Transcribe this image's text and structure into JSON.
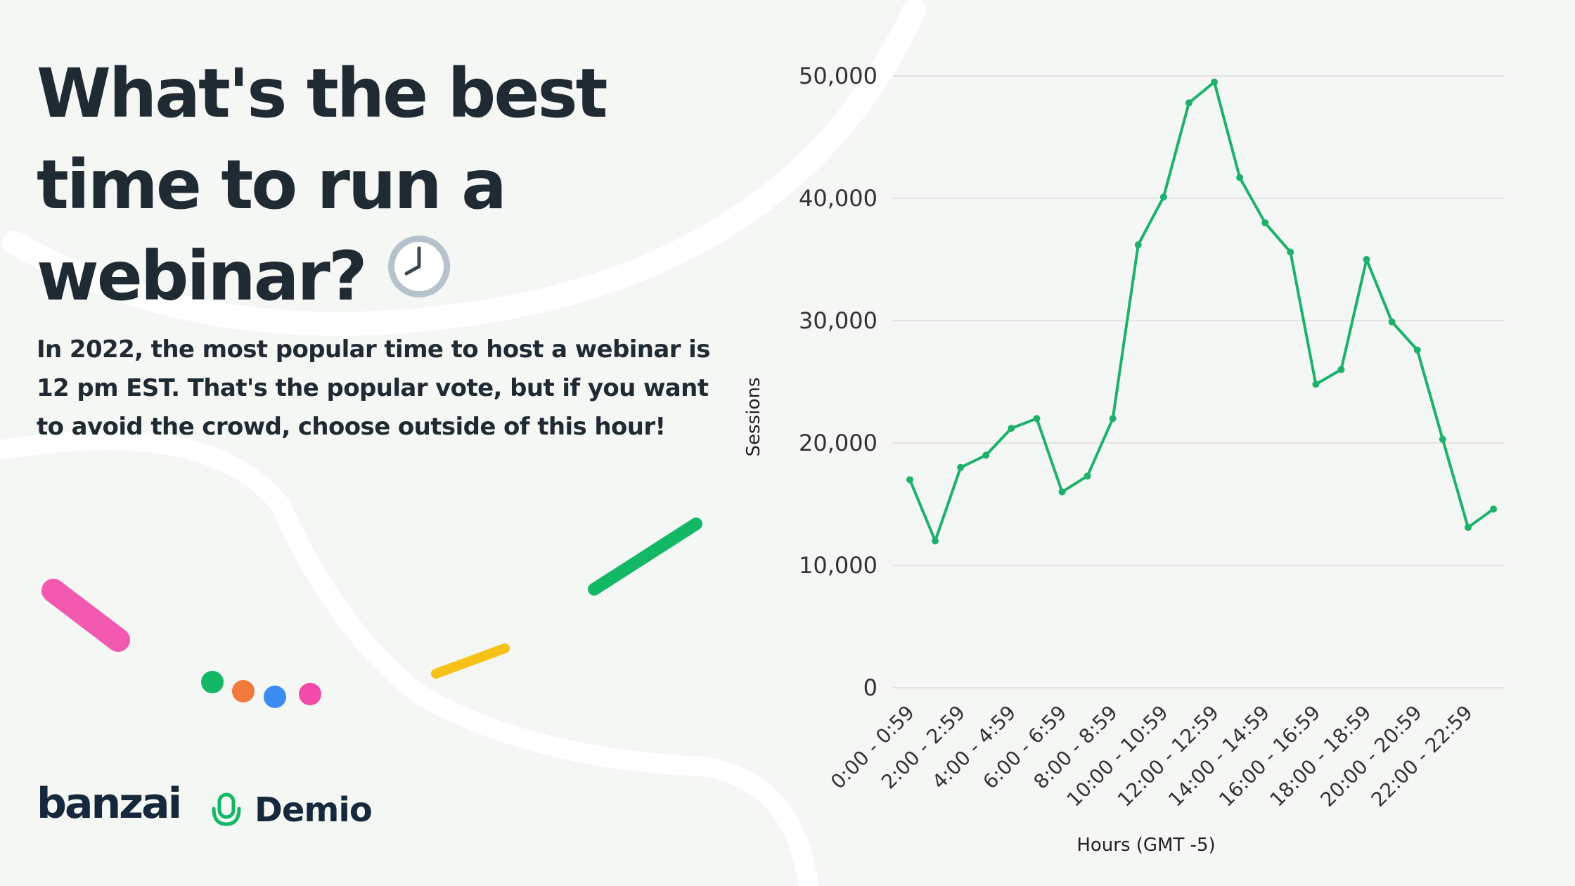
{
  "header": {
    "title": "What's the best time to run a webinar?",
    "subtitle": "In 2022, the most popular time to host a webinar is 12 pm EST. That's the popular vote, but if you want to avoid the crowd, choose outside of this hour!"
  },
  "brands": {
    "banzai": "banzai",
    "demio": "Demio"
  },
  "colors": {
    "line": "#1db16b",
    "text": "#1f2a33",
    "grid": "#dedede"
  },
  "chart_data": {
    "type": "line",
    "title": "",
    "xlabel": "Hours (GMT -5)",
    "ylabel": "Sessions",
    "ylim": [
      0,
      50000
    ],
    "yticks": [
      "0",
      "10,000",
      "20,000",
      "30,000",
      "40,000",
      "50,000"
    ],
    "xtick_labels": [
      "0:00 - 0:59",
      "2:00 - 2:59",
      "4:00 - 4:59",
      "6:00 - 6:59",
      "8:00 - 8:59",
      "10:00 - 10:59",
      "12:00 - 12:59",
      "14:00 - 14:59",
      "16:00 - 16:59",
      "18:00 - 18:59",
      "20:00 - 20:59",
      "22:00 - 22:59"
    ],
    "x": [
      0,
      1,
      2,
      3,
      4,
      5,
      6,
      7,
      8,
      9,
      10,
      11,
      12,
      13,
      14,
      15,
      16,
      17,
      18,
      19,
      20,
      21,
      22,
      23
    ],
    "series": [
      {
        "values": [
          17000,
          12000,
          18000,
          19000,
          21200,
          22000,
          16000,
          17300,
          22000,
          36200,
          40100,
          47800,
          49500,
          41700,
          38000,
          35600,
          24800,
          26000,
          35000,
          29900,
          27600,
          20300,
          13100,
          14600
        ]
      }
    ],
    "grid": true
  }
}
